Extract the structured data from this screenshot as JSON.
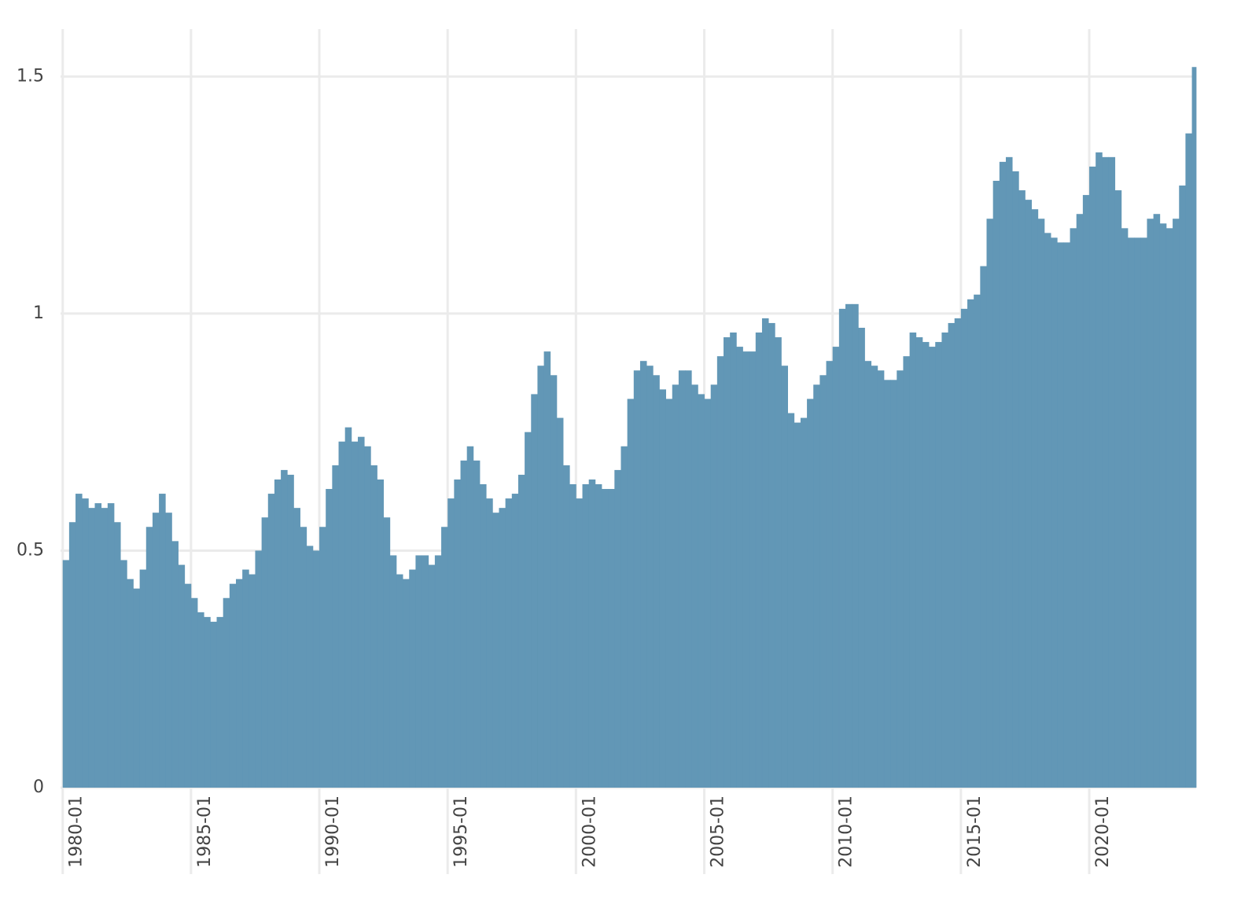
{
  "chart_data": {
    "type": "area",
    "color": "#5f95b5",
    "grid": true,
    "x": [
      "1980-01",
      "1980-04",
      "1980-07",
      "1980-10",
      "1981-01",
      "1981-04",
      "1981-07",
      "1981-10",
      "1982-01",
      "1982-04",
      "1982-07",
      "1982-10",
      "1983-01",
      "1983-04",
      "1983-07",
      "1983-10",
      "1984-01",
      "1984-04",
      "1984-07",
      "1984-10",
      "1985-01",
      "1985-04",
      "1985-07",
      "1985-10",
      "1986-01",
      "1986-04",
      "1986-07",
      "1986-10",
      "1987-01",
      "1987-04",
      "1987-07",
      "1987-10",
      "1988-01",
      "1988-04",
      "1988-07",
      "1988-10",
      "1989-01",
      "1989-04",
      "1989-07",
      "1989-10",
      "1990-01",
      "1990-04",
      "1990-07",
      "1990-10",
      "1991-01",
      "1991-04",
      "1991-07",
      "1991-10",
      "1992-01",
      "1992-04",
      "1992-07",
      "1992-10",
      "1993-01",
      "1993-04",
      "1993-07",
      "1993-10",
      "1994-01",
      "1994-04",
      "1994-07",
      "1994-10",
      "1995-01",
      "1995-04",
      "1995-07",
      "1995-10",
      "1996-01",
      "1996-04",
      "1996-07",
      "1996-10",
      "1997-01",
      "1997-04",
      "1997-07",
      "1997-10",
      "1998-01",
      "1998-04",
      "1998-07",
      "1998-10",
      "1999-01",
      "1999-04",
      "1999-07",
      "1999-10",
      "2000-01",
      "2000-04",
      "2000-07",
      "2000-10",
      "2001-01",
      "2001-04",
      "2001-07",
      "2001-10",
      "2002-01",
      "2002-04",
      "2002-07",
      "2002-10",
      "2003-01",
      "2003-04",
      "2003-07",
      "2003-10",
      "2004-01",
      "2004-04",
      "2004-07",
      "2004-10",
      "2005-01",
      "2005-04",
      "2005-07",
      "2005-10",
      "2006-01",
      "2006-04",
      "2006-07",
      "2006-10",
      "2007-01",
      "2007-04",
      "2007-07",
      "2007-10",
      "2008-01",
      "2008-04",
      "2008-07",
      "2008-10",
      "2009-01",
      "2009-04",
      "2009-07",
      "2009-10",
      "2010-01",
      "2010-04",
      "2010-07",
      "2010-10",
      "2011-01",
      "2011-04",
      "2011-07",
      "2011-10",
      "2012-01",
      "2012-04",
      "2012-07",
      "2012-10",
      "2013-01",
      "2013-04",
      "2013-07",
      "2013-10",
      "2014-01",
      "2014-04",
      "2014-07",
      "2014-10",
      "2015-01",
      "2015-04",
      "2015-07",
      "2015-10",
      "2016-01",
      "2016-04",
      "2016-07",
      "2016-10",
      "2017-01",
      "2017-04",
      "2017-07",
      "2017-10",
      "2018-01",
      "2018-04",
      "2018-07",
      "2018-10",
      "2019-01",
      "2019-04",
      "2019-07",
      "2019-10",
      "2020-01",
      "2020-04",
      "2020-07",
      "2020-10",
      "2021-01",
      "2021-04",
      "2021-07",
      "2021-10",
      "2022-01",
      "2022-04",
      "2022-07",
      "2022-10",
      "2023-01",
      "2023-04",
      "2023-07",
      "2023-10",
      "2024-01"
    ],
    "values": [
      0.48,
      0.56,
      0.62,
      0.61,
      0.59,
      0.6,
      0.59,
      0.6,
      0.56,
      0.48,
      0.44,
      0.42,
      0.46,
      0.55,
      0.58,
      0.62,
      0.58,
      0.52,
      0.47,
      0.43,
      0.4,
      0.37,
      0.36,
      0.35,
      0.36,
      0.4,
      0.43,
      0.44,
      0.46,
      0.45,
      0.5,
      0.57,
      0.62,
      0.65,
      0.67,
      0.66,
      0.59,
      0.55,
      0.51,
      0.5,
      0.55,
      0.63,
      0.68,
      0.73,
      0.76,
      0.73,
      0.74,
      0.72,
      0.68,
      0.65,
      0.57,
      0.49,
      0.45,
      0.44,
      0.46,
      0.49,
      0.49,
      0.47,
      0.49,
      0.55,
      0.61,
      0.65,
      0.69,
      0.72,
      0.69,
      0.64,
      0.61,
      0.58,
      0.59,
      0.61,
      0.62,
      0.66,
      0.75,
      0.83,
      0.89,
      0.92,
      0.87,
      0.78,
      0.68,
      0.64,
      0.61,
      0.64,
      0.65,
      0.64,
      0.63,
      0.63,
      0.67,
      0.72,
      0.82,
      0.88,
      0.9,
      0.89,
      0.87,
      0.84,
      0.82,
      0.85,
      0.88,
      0.88,
      0.85,
      0.83,
      0.82,
      0.85,
      0.91,
      0.95,
      0.96,
      0.93,
      0.92,
      0.92,
      0.96,
      0.99,
      0.98,
      0.95,
      0.89,
      0.79,
      0.77,
      0.78,
      0.82,
      0.85,
      0.87,
      0.9,
      0.93,
      1.01,
      1.02,
      1.02,
      0.97,
      0.9,
      0.89,
      0.88,
      0.86,
      0.86,
      0.88,
      0.91,
      0.96,
      0.95,
      0.94,
      0.93,
      0.94,
      0.96,
      0.98,
      0.99,
      1.01,
      1.03,
      1.04,
      1.1,
      1.2,
      1.28,
      1.32,
      1.33,
      1.3,
      1.26,
      1.24,
      1.22,
      1.2,
      1.17,
      1.16,
      1.15,
      1.15,
      1.18,
      1.21,
      1.25,
      1.31,
      1.34,
      1.33,
      1.33,
      1.26,
      1.18,
      1.16,
      1.16,
      1.16,
      1.2,
      1.21,
      1.19,
      1.18,
      1.2,
      1.27,
      1.38,
      1.52
    ],
    "xlim": [
      "1979-12",
      "2024-03"
    ],
    "xticks": [
      "1980-01",
      "1985-01",
      "1990-01",
      "1995-01",
      "2000-01",
      "2005-01",
      "2010-01",
      "2015-01",
      "2020-01"
    ],
    "ylim": [
      0,
      1.6
    ],
    "yticks": [
      0,
      0.5,
      1,
      1.5
    ]
  }
}
